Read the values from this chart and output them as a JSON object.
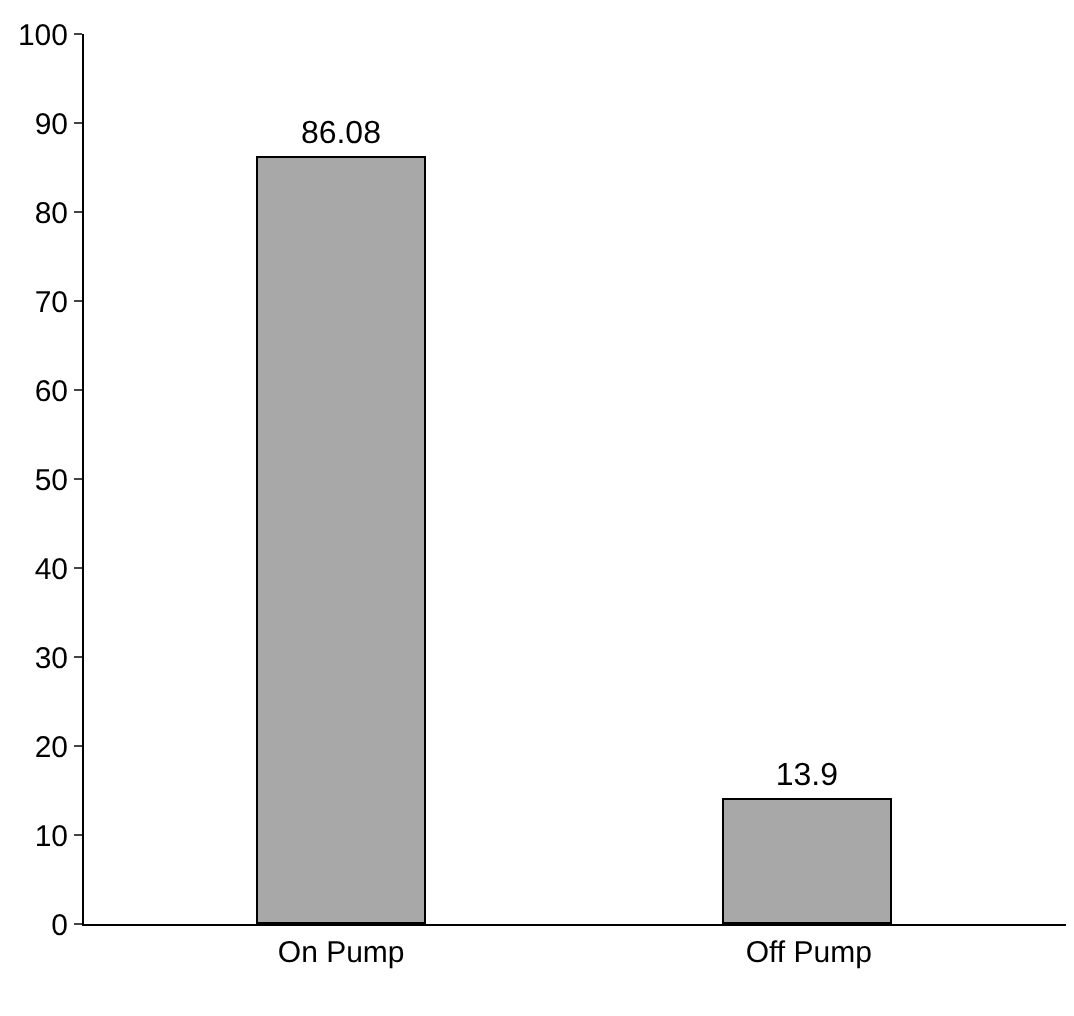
{
  "chart_data": {
    "type": "bar",
    "categories": [
      "On Pump",
      "Off Pump"
    ],
    "values": [
      86.08,
      13.9
    ],
    "color": "#a8a8a8",
    "ylim": [
      0,
      100
    ],
    "yticks": [
      0,
      10,
      20,
      30,
      40,
      50,
      60,
      70,
      80,
      90,
      100
    ],
    "data_labels": true
  }
}
